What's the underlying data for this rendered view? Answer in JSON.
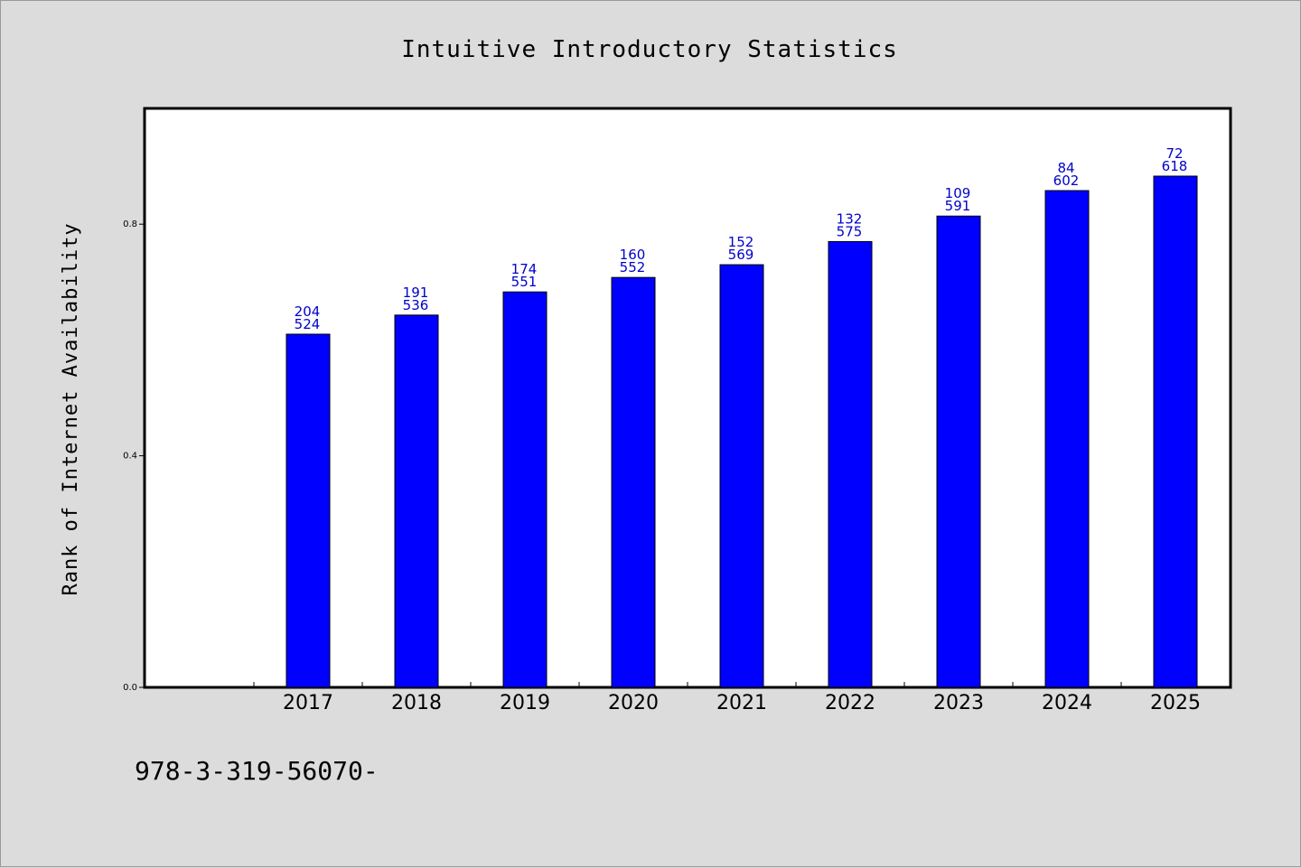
{
  "chart_data": {
    "type": "bar",
    "title": "Intuitive Introductory Statistics",
    "xlabel": "",
    "ylabel": "Rank of Internet Availability",
    "categories": [
      "2017",
      "2018",
      "2019",
      "2020",
      "2021",
      "2022",
      "2023",
      "2024",
      "2025"
    ],
    "values": [
      0.61,
      0.643,
      0.683,
      0.708,
      0.73,
      0.77,
      0.814,
      0.858,
      0.883
    ],
    "label_top": [
      "204",
      "191",
      "174",
      "160",
      "152",
      "132",
      "109",
      "84",
      "72"
    ],
    "label_bottom": [
      "524",
      "536",
      "551",
      "552",
      "569",
      "575",
      "591",
      "602",
      "618"
    ],
    "yticks": [
      "0.0",
      "0.4",
      "0.8"
    ],
    "ylim": [
      0,
      1.0
    ],
    "bar_color": "#0000ff",
    "label_color": "#0000cc",
    "grid": false,
    "legend": "none"
  },
  "footer": {
    "text": "978-3-319-56070-"
  }
}
